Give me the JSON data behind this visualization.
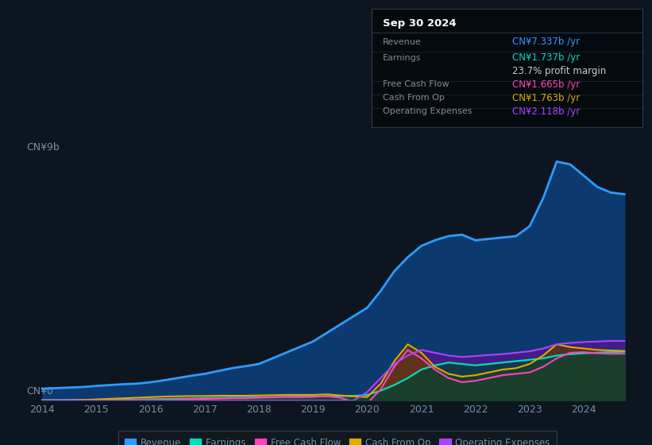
{
  "bg_color": "#0d1520",
  "plot_bg_color": "#0d1520",
  "grid_color": "#1a2a3a",
  "text_color": "#7a8fa0",
  "ylabel_top": "CN¥9b",
  "ylabel_bottom": "CN¥0",
  "tooltip_title": "Sep 30 2024",
  "tooltip_rows": [
    {
      "label": "Revenue",
      "value": "CN¥7.337b /yr",
      "color": "#3399ff"
    },
    {
      "label": "Earnings",
      "value": "CN¥1.737b /yr",
      "color": "#00ddbb"
    },
    {
      "label": "",
      "value": "23.7% profit margin",
      "color": "#cccccc"
    },
    {
      "label": "Free Cash Flow",
      "value": "CN¥1.665b /yr",
      "color": "#ff44bb"
    },
    {
      "label": "Cash From Op",
      "value": "CN¥1.763b /yr",
      "color": "#ddaa00"
    },
    {
      "label": "Operating Expenses",
      "value": "CN¥2.118b /yr",
      "color": "#aa44ff"
    }
  ],
  "legend": [
    {
      "label": "Revenue",
      "color": "#3399ff"
    },
    {
      "label": "Earnings",
      "color": "#00ddbb"
    },
    {
      "label": "Free Cash Flow",
      "color": "#ff44bb"
    },
    {
      "label": "Cash From Op",
      "color": "#ddaa00"
    },
    {
      "label": "Operating Expenses",
      "color": "#aa44ff"
    }
  ],
  "x_quarterly": [
    2014.0,
    2014.25,
    2014.5,
    2014.75,
    2015.0,
    2015.25,
    2015.5,
    2015.75,
    2016.0,
    2016.25,
    2016.5,
    2016.75,
    2017.0,
    2017.25,
    2017.5,
    2017.75,
    2018.0,
    2018.25,
    2018.5,
    2018.75,
    2019.0,
    2019.25,
    2019.5,
    2019.75,
    2020.0,
    2020.25,
    2020.5,
    2020.75,
    2021.0,
    2021.25,
    2021.5,
    2021.75,
    2022.0,
    2022.25,
    2022.5,
    2022.75,
    2023.0,
    2023.25,
    2023.5,
    2023.75,
    2024.0,
    2024.25,
    2024.5,
    2024.75
  ],
  "revenue": [
    0.42,
    0.44,
    0.46,
    0.48,
    0.52,
    0.55,
    0.58,
    0.6,
    0.65,
    0.72,
    0.8,
    0.88,
    0.95,
    1.05,
    1.15,
    1.22,
    1.3,
    1.5,
    1.7,
    1.9,
    2.1,
    2.4,
    2.7,
    3.0,
    3.3,
    3.9,
    4.6,
    5.1,
    5.5,
    5.7,
    5.85,
    5.9,
    5.7,
    5.75,
    5.8,
    5.85,
    6.2,
    7.2,
    8.5,
    8.4,
    8.0,
    7.6,
    7.4,
    7.34
  ],
  "earnings": [
    0.02,
    0.02,
    0.02,
    0.02,
    0.02,
    0.03,
    0.03,
    0.03,
    0.04,
    0.05,
    0.06,
    0.07,
    0.08,
    0.09,
    0.1,
    0.1,
    0.11,
    0.12,
    0.13,
    0.13,
    0.14,
    0.15,
    0.16,
    0.16,
    0.2,
    0.35,
    0.55,
    0.8,
    1.1,
    1.25,
    1.35,
    1.3,
    1.25,
    1.3,
    1.35,
    1.4,
    1.45,
    1.5,
    1.6,
    1.65,
    1.68,
    1.7,
    1.72,
    1.737
  ],
  "free_cash_flow": [
    0.01,
    0.01,
    0.01,
    0.01,
    0.01,
    0.01,
    0.01,
    0.02,
    0.02,
    0.02,
    0.03,
    0.05,
    0.06,
    0.07,
    0.08,
    0.08,
    0.1,
    0.11,
    0.12,
    0.12,
    0.13,
    0.15,
    0.1,
    -0.05,
    -0.1,
    0.4,
    1.2,
    1.8,
    1.5,
    1.1,
    0.8,
    0.65,
    0.7,
    0.8,
    0.9,
    0.95,
    1.0,
    1.2,
    1.5,
    1.7,
    1.72,
    1.68,
    1.66,
    1.665
  ],
  "cash_from_op": [
    -0.02,
    -0.01,
    0.0,
    0.02,
    0.04,
    0.06,
    0.08,
    0.1,
    0.12,
    0.14,
    0.15,
    0.16,
    0.16,
    0.17,
    0.17,
    0.17,
    0.18,
    0.19,
    0.2,
    0.2,
    0.2,
    0.22,
    0.18,
    0.15,
    0.12,
    0.6,
    1.4,
    2.0,
    1.7,
    1.2,
    0.95,
    0.85,
    0.9,
    1.0,
    1.1,
    1.15,
    1.3,
    1.6,
    2.0,
    1.9,
    1.85,
    1.8,
    1.78,
    1.763
  ],
  "op_expenses": [
    0.0,
    0.0,
    0.0,
    0.0,
    0.0,
    0.0,
    0.0,
    0.0,
    0.0,
    0.0,
    0.0,
    0.0,
    0.0,
    0.0,
    0.0,
    0.0,
    0.0,
    0.0,
    0.0,
    0.0,
    0.0,
    0.0,
    0.0,
    0.0,
    0.3,
    0.8,
    1.3,
    1.6,
    1.8,
    1.7,
    1.6,
    1.55,
    1.58,
    1.62,
    1.65,
    1.7,
    1.75,
    1.85,
    2.0,
    2.05,
    2.08,
    2.1,
    2.12,
    2.118
  ],
  "xticks": [
    2014,
    2015,
    2016,
    2017,
    2018,
    2019,
    2020,
    2021,
    2022,
    2023,
    2024
  ],
  "ylim": [
    0,
    9.5
  ],
  "xlim": [
    2013.7,
    2025.2
  ]
}
